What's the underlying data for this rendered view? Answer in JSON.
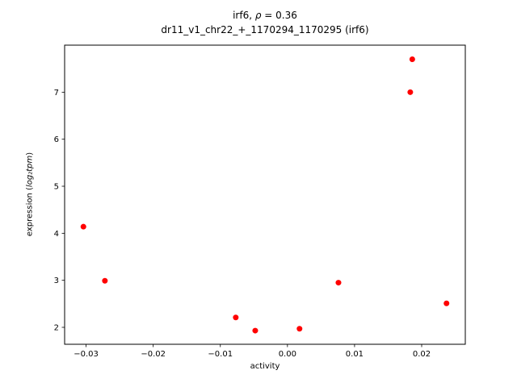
{
  "chart_data": {
    "type": "scatter",
    "title_prefix": "irf6, ",
    "title_rho": "ρ",
    "title_suffix": " = 0.36",
    "title_line2": "dr11_v1_chr22_+_1170294_1170295 (irf6)",
    "xlabel": "activity",
    "ylabel_prefix": "expression (",
    "ylabel_math": "log₂tpm",
    "ylabel_suffix": ")",
    "xlim": [
      -0.0332,
      0.0265
    ],
    "ylim": [
      1.64,
      8.0
    ],
    "x_ticks": [
      -0.03,
      -0.02,
      -0.01,
      0.0,
      0.01,
      0.02
    ],
    "y_ticks": [
      2,
      3,
      4,
      5,
      6,
      7
    ],
    "grid": false,
    "legend": "none",
    "marker_color": "#ff0000",
    "points": [
      {
        "x": -0.0304,
        "y": 4.14
      },
      {
        "x": -0.0272,
        "y": 2.99
      },
      {
        "x": -0.0077,
        "y": 2.21
      },
      {
        "x": -0.0048,
        "y": 1.93
      },
      {
        "x": 0.0018,
        "y": 1.97
      },
      {
        "x": 0.0076,
        "y": 2.95
      },
      {
        "x": 0.0183,
        "y": 7.0
      },
      {
        "x": 0.0186,
        "y": 7.7
      },
      {
        "x": 0.0237,
        "y": 2.51
      }
    ]
  }
}
